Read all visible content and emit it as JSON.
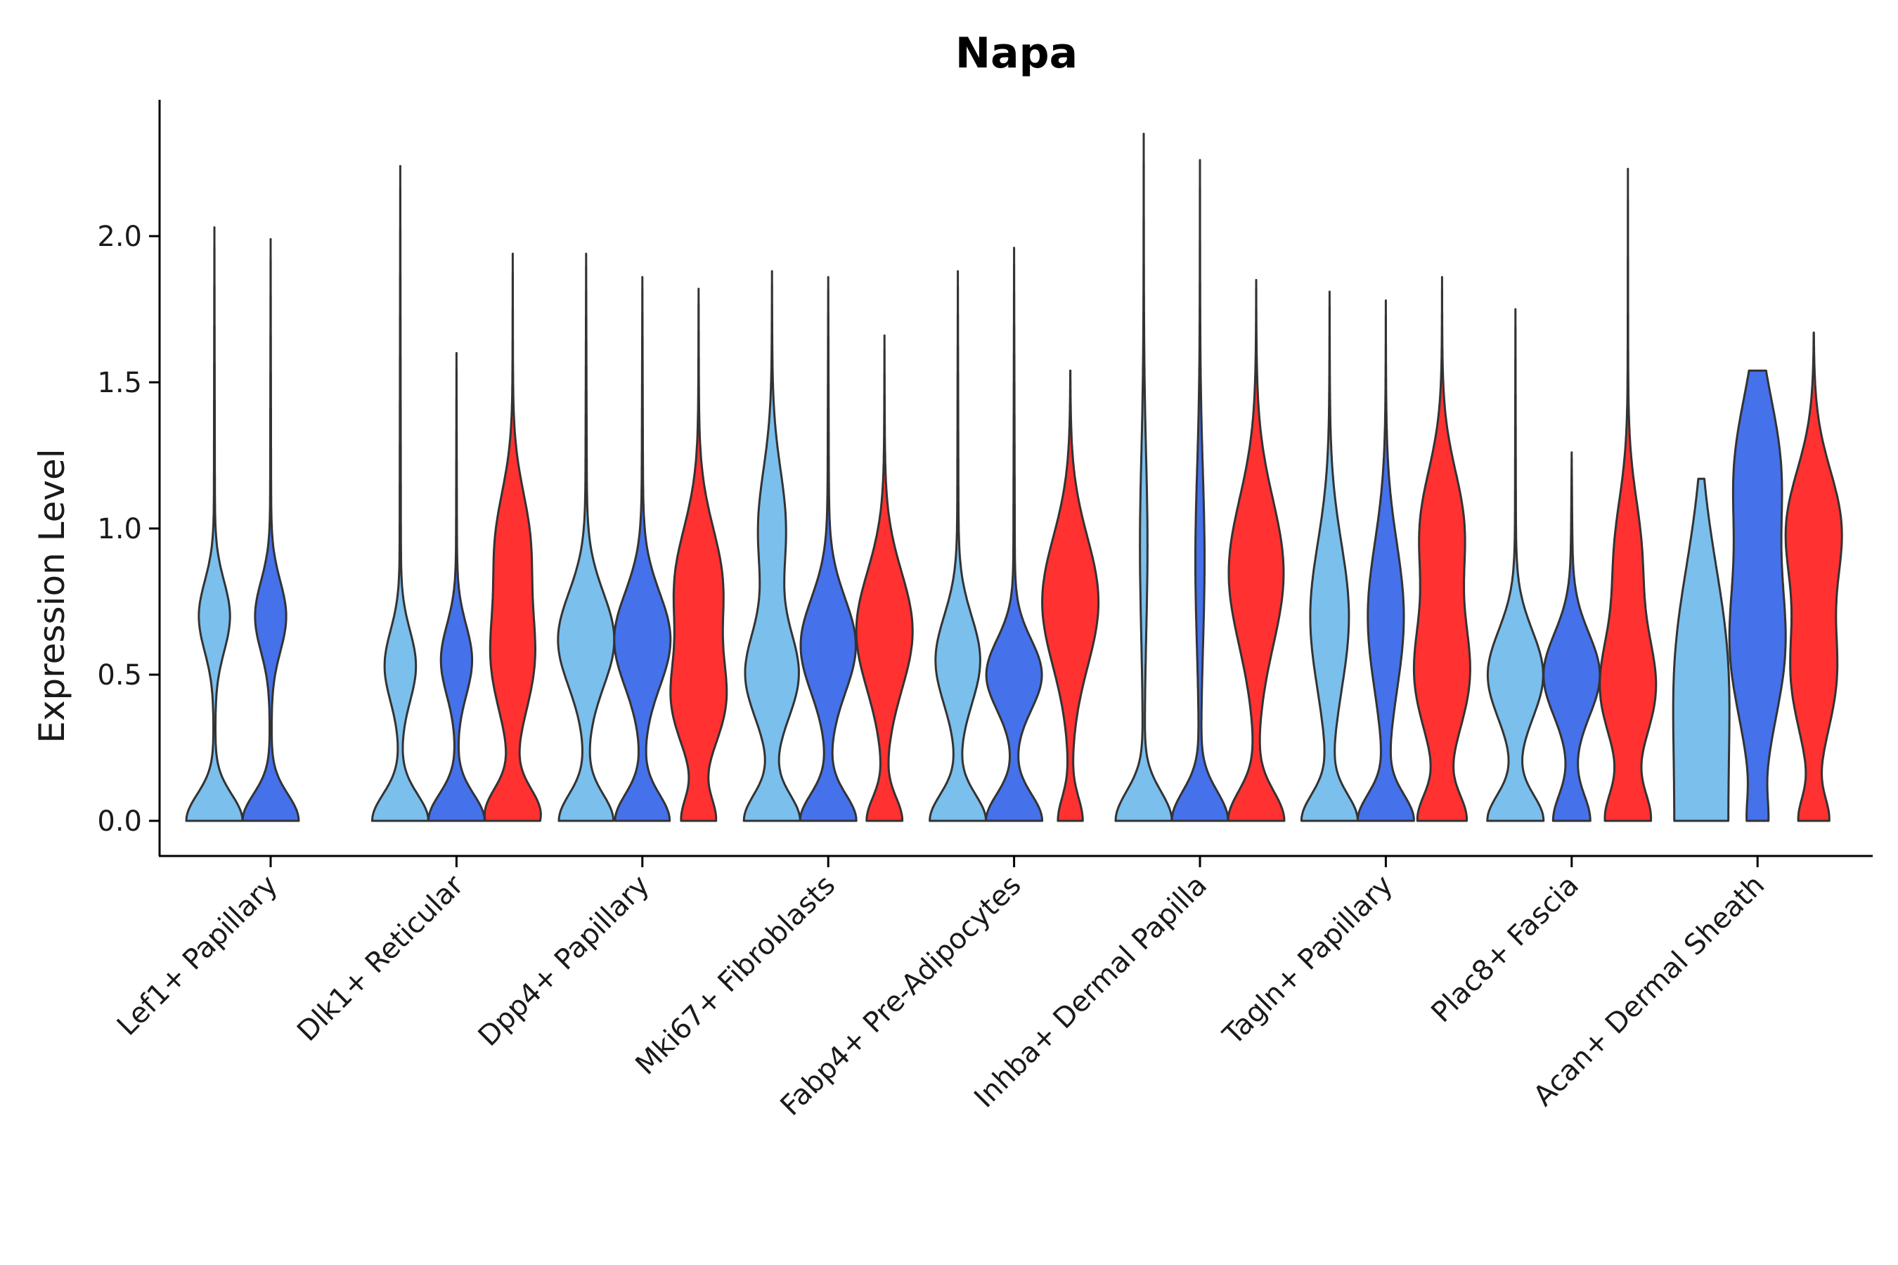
{
  "chart_data": {
    "type": "violin",
    "title": "Napa",
    "xlabel": "",
    "ylabel": "Expression Level",
    "ylim": [
      -0.12,
      2.47
    ],
    "yticks": [
      "0.0",
      "0.5",
      "1.0",
      "1.5",
      "2.0"
    ],
    "ytick_values": [
      0.0,
      0.5,
      1.0,
      1.5,
      2.0
    ],
    "categories": [
      "Lef1+ Papillary",
      "Dlk1+ Reticular",
      "Dpp4+ Papillary",
      "Mki67+ Fibroblasts",
      "Fabp4+ Pre-Adipocytes",
      "Inhba+ Dermal Papilla",
      "Tagln+ Papillary",
      "Plac8+ Fascia",
      "Acan+ Dermal Sheath"
    ],
    "series_colors": [
      "#7bbfed",
      "#4571ea",
      "#ff3131"
    ],
    "violins": [
      {
        "category": 0,
        "series": 0,
        "max": 2.03,
        "modes": [
          [
            0.0,
            1.0,
            0.09
          ],
          [
            0.7,
            0.55,
            0.12
          ]
        ],
        "tail": 0.04
      },
      {
        "category": 0,
        "series": 1,
        "max": 1.99,
        "modes": [
          [
            0.0,
            1.0,
            0.09
          ],
          [
            0.7,
            0.55,
            0.12
          ]
        ],
        "tail": 0.04
      },
      {
        "category": 1,
        "series": 0,
        "max": 2.24,
        "modes": [
          [
            0.0,
            1.0,
            0.09
          ],
          [
            0.53,
            0.55,
            0.12
          ]
        ],
        "tail": 0.04
      },
      {
        "category": 1,
        "series": 1,
        "max": 1.6,
        "modes": [
          [
            0.0,
            1.0,
            0.09
          ],
          [
            0.55,
            0.55,
            0.12
          ]
        ],
        "tail": 0.04
      },
      {
        "category": 1,
        "series": 2,
        "max": 1.94,
        "modes": [
          [
            0.02,
            1.0,
            0.09
          ],
          [
            0.55,
            0.75,
            0.18
          ],
          [
            0.95,
            0.6,
            0.18
          ]
        ],
        "tail": 0.04
      },
      {
        "category": 2,
        "series": 0,
        "max": 1.94,
        "modes": [
          [
            0.0,
            0.95,
            0.09
          ],
          [
            0.62,
            1.0,
            0.16
          ]
        ],
        "tail": 0.06
      },
      {
        "category": 2,
        "series": 1,
        "max": 1.86,
        "modes": [
          [
            0.0,
            0.95,
            0.09
          ],
          [
            0.62,
            1.0,
            0.16
          ]
        ],
        "tail": 0.06
      },
      {
        "category": 2,
        "series": 2,
        "max": 1.82,
        "modes": [
          [
            0.0,
            0.6,
            0.08
          ],
          [
            0.4,
            0.9,
            0.15
          ],
          [
            0.8,
            0.9,
            0.2
          ]
        ],
        "tail": 0.05
      },
      {
        "category": 3,
        "series": 0,
        "max": 1.88,
        "modes": [
          [
            0.0,
            1.0,
            0.09
          ],
          [
            0.5,
            0.95,
            0.15
          ],
          [
            1.0,
            0.5,
            0.2
          ]
        ],
        "tail": 0.06
      },
      {
        "category": 3,
        "series": 1,
        "max": 1.86,
        "modes": [
          [
            0.0,
            1.0,
            0.09
          ],
          [
            0.6,
            1.0,
            0.16
          ]
        ],
        "tail": 0.06
      },
      {
        "category": 3,
        "series": 2,
        "max": 1.66,
        "modes": [
          [
            0.0,
            0.6,
            0.08
          ],
          [
            0.65,
            1.0,
            0.2
          ]
        ],
        "tail": 0.05
      },
      {
        "category": 4,
        "series": 0,
        "max": 1.88,
        "modes": [
          [
            0.0,
            1.0,
            0.09
          ],
          [
            0.55,
            0.8,
            0.15
          ]
        ],
        "tail": 0.05
      },
      {
        "category": 4,
        "series": 1,
        "max": 1.96,
        "modes": [
          [
            0.0,
            1.0,
            0.09
          ],
          [
            0.5,
            1.0,
            0.12
          ]
        ],
        "tail": 0.05
      },
      {
        "category": 4,
        "series": 2,
        "max": 1.54,
        "modes": [
          [
            0.0,
            0.4,
            0.08
          ],
          [
            0.75,
            1.0,
            0.22
          ]
        ],
        "tail": 0.05
      },
      {
        "category": 5,
        "series": 0,
        "max": 2.35,
        "modes": [
          [
            0.0,
            1.0,
            0.1
          ],
          [
            0.95,
            0.12,
            0.3
          ]
        ],
        "tail": 0.03
      },
      {
        "category": 5,
        "series": 1,
        "max": 2.26,
        "modes": [
          [
            0.0,
            1.0,
            0.1
          ],
          [
            0.9,
            0.15,
            0.3
          ]
        ],
        "tail": 0.03
      },
      {
        "category": 5,
        "series": 2,
        "max": 1.85,
        "modes": [
          [
            0.0,
            1.0,
            0.1
          ],
          [
            0.85,
            1.0,
            0.25
          ]
        ],
        "tail": 0.05
      },
      {
        "category": 6,
        "series": 0,
        "max": 1.81,
        "modes": [
          [
            0.0,
            1.0,
            0.09
          ],
          [
            0.7,
            0.7,
            0.25
          ]
        ],
        "tail": 0.04
      },
      {
        "category": 6,
        "series": 1,
        "max": 1.78,
        "modes": [
          [
            0.0,
            1.0,
            0.09
          ],
          [
            0.7,
            0.65,
            0.25
          ]
        ],
        "tail": 0.04
      },
      {
        "category": 6,
        "series": 2,
        "max": 1.86,
        "modes": [
          [
            0.0,
            0.85,
            0.09
          ],
          [
            0.5,
            1.0,
            0.2
          ],
          [
            1.0,
            0.8,
            0.2
          ]
        ],
        "tail": 0.05
      },
      {
        "category": 7,
        "series": 0,
        "max": 1.75,
        "modes": [
          [
            0.0,
            1.0,
            0.09
          ],
          [
            0.5,
            1.0,
            0.15
          ]
        ],
        "tail": 0.04
      },
      {
        "category": 7,
        "series": 1,
        "max": 1.26,
        "modes": [
          [
            0.0,
            0.6,
            0.09
          ],
          [
            0.5,
            1.0,
            0.14
          ]
        ],
        "tail": 0.1,
        "flat_top": true
      },
      {
        "category": 7,
        "series": 2,
        "max": 2.23,
        "modes": [
          [
            0.0,
            0.8,
            0.1
          ],
          [
            0.45,
            1.0,
            0.18
          ],
          [
            0.9,
            0.5,
            0.2
          ]
        ],
        "tail": 0.03
      },
      {
        "category": 8,
        "series": 0,
        "max": 1.17,
        "modes": [
          [
            0.0,
            0.95,
            0.5
          ],
          [
            0.6,
            1.0,
            0.3
          ]
        ],
        "tail": 0.95,
        "flat_top": true
      },
      {
        "category": 8,
        "series": 1,
        "max": 1.54,
        "modes": [
          [
            0.0,
            0.2,
            0.08
          ],
          [
            0.6,
            1.0,
            0.25
          ],
          [
            1.2,
            0.9,
            0.25
          ]
        ],
        "tail": 0.2,
        "flat_top": true
      },
      {
        "category": 8,
        "series": 2,
        "max": 1.67,
        "modes": [
          [
            0.0,
            0.5,
            0.08
          ],
          [
            0.5,
            0.8,
            0.2
          ],
          [
            1.0,
            1.0,
            0.2
          ]
        ],
        "tail": 0.05
      }
    ]
  }
}
